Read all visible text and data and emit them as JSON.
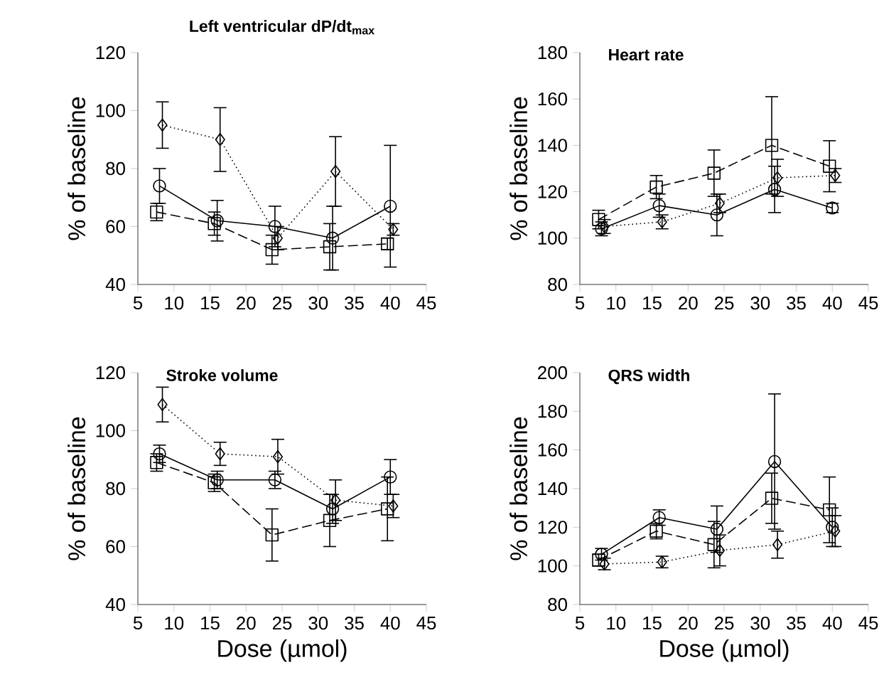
{
  "chart_data": [
    {
      "type": "line",
      "title": "Left ventricular dP/dt$_{max}$",
      "ylabel": "% of baseline",
      "xlim": [
        5,
        45
      ],
      "xticks": [
        5,
        10,
        15,
        20,
        25,
        30,
        35,
        40,
        45
      ],
      "ylim": [
        40,
        120
      ],
      "yticks": [
        40,
        60,
        80,
        100,
        120
      ],
      "series": [
        {
          "color": "#000000",
          "marker": "circle",
          "line_style": "solid",
          "x": [
            8,
            16,
            24,
            32,
            40
          ],
          "values": [
            74,
            62,
            60,
            56,
            67
          ],
          "errors": [
            6,
            7,
            7,
            11,
            21
          ]
        },
        {
          "color": "#000000",
          "marker": "square",
          "line_style": "dashed",
          "x": [
            7.6,
            15.6,
            23.6,
            31.6,
            39.6
          ],
          "values": [
            65,
            61,
            52,
            53,
            54
          ],
          "errors": [
            3,
            4,
            5,
            8,
            2
          ]
        },
        {
          "color": "#000000",
          "marker": "diamond",
          "line_style": "dotted",
          "x": [
            8.4,
            16.4,
            24.4,
            32.4,
            40.4
          ],
          "values": [
            95,
            90,
            56,
            79,
            59
          ],
          "errors": [
            8,
            11,
            4,
            12,
            2
          ]
        }
      ]
    },
    {
      "type": "line",
      "title": "Heart rate",
      "ylabel": "% of baseline",
      "xlim": [
        5,
        45
      ],
      "xticks": [
        5,
        10,
        15,
        20,
        25,
        30,
        35,
        40,
        45
      ],
      "ylim": [
        80,
        180
      ],
      "yticks": [
        80,
        100,
        120,
        140,
        160,
        180
      ],
      "series": [
        {
          "color": "#000000",
          "marker": "circle",
          "line_style": "solid",
          "x": [
            8,
            16,
            24,
            32,
            40
          ],
          "values": [
            104,
            114,
            110,
            121,
            113
          ],
          "errors": [
            3,
            5,
            9,
            10,
            2
          ]
        },
        {
          "color": "#000000",
          "marker": "square",
          "line_style": "dashed",
          "x": [
            7.6,
            15.6,
            23.6,
            31.6,
            39.6
          ],
          "values": [
            108,
            122,
            128,
            140,
            131
          ],
          "errors": [
            4,
            5,
            10,
            21,
            11
          ]
        },
        {
          "color": "#000000",
          "marker": "diamond",
          "line_style": "dotted",
          "x": [
            8.4,
            16.4,
            24.4,
            32.4,
            40.4
          ],
          "values": [
            105,
            107,
            115,
            126,
            127
          ],
          "errors": [
            3,
            3,
            4,
            8,
            3
          ]
        }
      ]
    },
    {
      "type": "line",
      "title": "Stroke volume",
      "xlabel": "Dose (µmol)",
      "ylabel": "% of baseline",
      "xlim": [
        5,
        45
      ],
      "xticks": [
        5,
        10,
        15,
        20,
        25,
        30,
        35,
        40,
        45
      ],
      "ylim": [
        40,
        120
      ],
      "yticks": [
        40,
        60,
        80,
        100,
        120
      ],
      "series": [
        {
          "color": "#000000",
          "marker": "circle",
          "line_style": "solid",
          "x": [
            8,
            16,
            24,
            32,
            40
          ],
          "values": [
            92,
            83,
            83,
            73,
            84
          ],
          "errors": [
            3,
            3,
            3,
            5,
            6
          ]
        },
        {
          "color": "#000000",
          "marker": "square",
          "line_style": "dashed",
          "x": [
            7.6,
            15.6,
            23.6,
            31.6,
            39.6
          ],
          "values": [
            89,
            82,
            64,
            69,
            73
          ],
          "errors": [
            3,
            3,
            9,
            9,
            11
          ]
        },
        {
          "color": "#000000",
          "marker": "diamond",
          "line_style": "dotted",
          "x": [
            8.4,
            16.4,
            24.4,
            32.4,
            40.4
          ],
          "values": [
            109,
            92,
            91,
            76,
            74
          ],
          "errors": [
            6,
            4,
            6,
            7,
            4
          ]
        }
      ]
    },
    {
      "type": "line",
      "title": "QRS width",
      "xlabel": "Dose (µmol)",
      "ylabel": "% of baseline",
      "xlim": [
        5,
        45
      ],
      "xticks": [
        5,
        10,
        15,
        20,
        25,
        30,
        35,
        40,
        45
      ],
      "ylim": [
        80,
        200
      ],
      "yticks": [
        80,
        100,
        120,
        140,
        160,
        180,
        200
      ],
      "series": [
        {
          "color": "#000000",
          "marker": "circle",
          "line_style": "solid",
          "x": [
            8,
            16,
            24,
            32,
            40
          ],
          "values": [
            106,
            125,
            119,
            154,
            120
          ],
          "errors": [
            3,
            4,
            12,
            35,
            10
          ]
        },
        {
          "color": "#000000",
          "marker": "square",
          "line_style": "dashed",
          "x": [
            7.6,
            15.6,
            23.6,
            31.6,
            39.6
          ],
          "values": [
            103,
            118,
            111,
            135,
            129
          ],
          "errors": [
            3,
            4,
            12,
            13,
            17
          ]
        },
        {
          "color": "#000000",
          "marker": "diamond",
          "line_style": "dotted",
          "x": [
            8.4,
            16.4,
            24.4,
            32.4,
            40.4
          ],
          "values": [
            101,
            102,
            108,
            111,
            118
          ],
          "errors": [
            3,
            3,
            8,
            7,
            8
          ]
        }
      ]
    }
  ]
}
